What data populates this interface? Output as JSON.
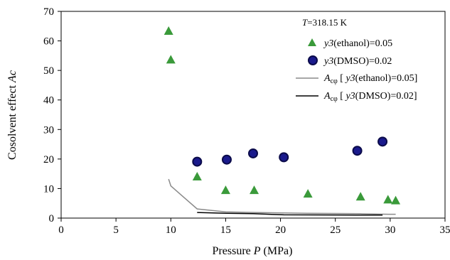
{
  "chart_data": {
    "type": "scatter",
    "title": "",
    "annotation": {
      "var": "T",
      "text": "=318.15 K"
    },
    "xlabel": {
      "prefix": "Pressure ",
      "var": "P",
      "suffix": "  (MPa)"
    },
    "ylabel": {
      "prefix": "Cosolvent effect ",
      "var": "Ac",
      "suffix": ""
    },
    "xlim": [
      0,
      35
    ],
    "ylim": [
      0,
      70
    ],
    "x_ticks": [
      0,
      5,
      10,
      15,
      20,
      25,
      30,
      35
    ],
    "y_ticks": [
      0,
      10,
      20,
      30,
      40,
      50,
      60,
      70
    ],
    "grid": false,
    "legend_position": "top-right",
    "colors": {
      "ethanol_marker": "#3a9a3a",
      "dmso_marker_fill": "#1a1a8c",
      "dmso_marker_ring": "#0b0b4a",
      "ethanol_line": "#8a8a8a",
      "dmso_line": "#000000"
    },
    "series": [
      {
        "name": "y3(ethanol)=0.05",
        "legend": {
          "var": "y3",
          "text": "(ethanol)=0.05"
        },
        "kind": "scatter",
        "marker": "triangle",
        "points": [
          [
            9.8,
            63.5
          ],
          [
            10.0,
            53.8
          ],
          [
            12.4,
            14.2
          ],
          [
            15.0,
            9.6
          ],
          [
            17.6,
            9.6
          ],
          [
            22.5,
            8.4
          ],
          [
            27.3,
            7.4
          ],
          [
            29.8,
            6.4
          ],
          [
            30.5,
            6.1
          ]
        ]
      },
      {
        "name": "y3(DMSO)=0.02",
        "legend": {
          "var": "y3",
          "text": "(DMSO)=0.02"
        },
        "kind": "scatter",
        "marker": "circle",
        "points": [
          [
            12.4,
            19.1
          ],
          [
            15.1,
            19.8
          ],
          [
            17.5,
            21.9
          ],
          [
            20.3,
            20.6
          ],
          [
            27.0,
            22.8
          ],
          [
            29.3,
            25.9
          ]
        ]
      },
      {
        "name": "Acφ [y3(ethanol)=0.05]",
        "legend": {
          "var_a": "A",
          "sub": "cφ",
          "open": " [ ",
          "var_b": "y3",
          "text": "(ethanol)=0.05]"
        },
        "kind": "line",
        "points": [
          [
            9.8,
            13.2
          ],
          [
            10.0,
            10.9
          ],
          [
            12.4,
            3.1
          ],
          [
            15.0,
            2.1
          ],
          [
            17.6,
            1.9
          ],
          [
            22.5,
            1.6
          ],
          [
            27.3,
            1.5
          ],
          [
            29.8,
            1.3
          ],
          [
            30.5,
            1.3
          ]
        ]
      },
      {
        "name": "Acφ [y3(DMSO)=0.02]",
        "legend": {
          "var_a": "A",
          "sub": "cφ",
          "open": " [ ",
          "var_b": "y3",
          "text": "(DMSO)=0.02]"
        },
        "kind": "line",
        "points": [
          [
            12.4,
            1.9
          ],
          [
            15.1,
            1.6
          ],
          [
            17.5,
            1.5
          ],
          [
            20.3,
            1.1
          ],
          [
            27.0,
            1.0
          ],
          [
            29.3,
            1.0
          ]
        ]
      }
    ]
  }
}
